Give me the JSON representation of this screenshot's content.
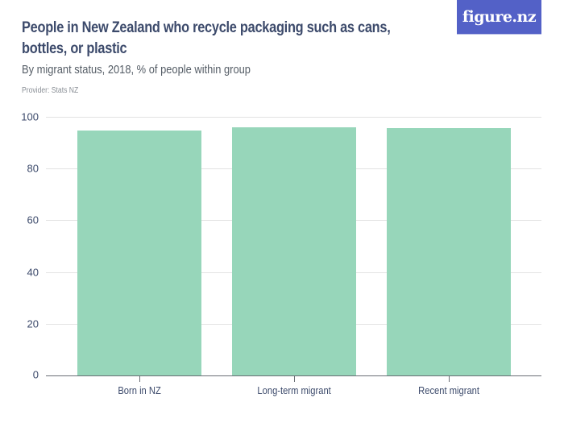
{
  "header": {
    "title": "People in New Zealand who recycle packaging such as cans, bottles, or plastic",
    "subtitle": "By migrant status, 2018, % of people within group",
    "provider": "Provider: Stats NZ",
    "logo": "figure.nz"
  },
  "colors": {
    "bar": "#97d6ba",
    "logo_bg": "#5361c7",
    "text": "#3c4a6b"
  },
  "axis": {
    "y_ticks": [
      "100",
      "80",
      "60",
      "40",
      "20",
      "0"
    ],
    "x_labels": [
      "Born in NZ",
      "Long-term migrant",
      "Recent migrant"
    ]
  },
  "chart_data": {
    "type": "bar",
    "title": "People in New Zealand who recycle packaging such as cans, bottles, or plastic",
    "subtitle": "By migrant status, 2018, % of people within group",
    "categories": [
      "Born in NZ",
      "Long-term migrant",
      "Recent migrant"
    ],
    "values": [
      94.7,
      96.0,
      95.6
    ],
    "xlabel": "",
    "ylabel": "% of people within group",
    "ylim": [
      0,
      100
    ],
    "yticks": [
      0,
      20,
      40,
      60,
      80,
      100
    ],
    "grid": true,
    "legend": null,
    "source": "Provider: Stats NZ"
  }
}
